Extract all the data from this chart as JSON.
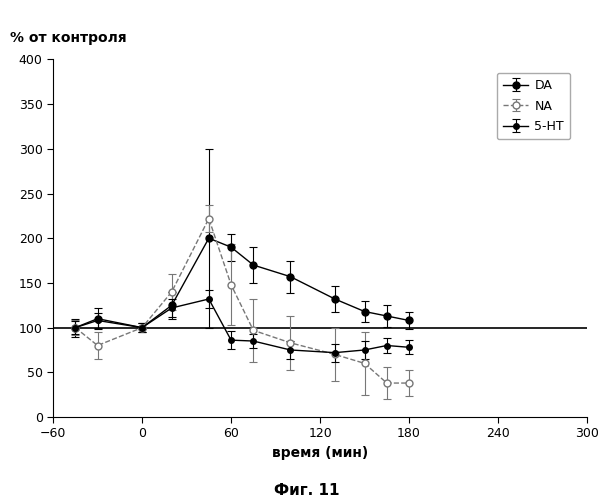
{
  "title": "% от контроля",
  "xlabel": "время (мин)",
  "caption": "Фиг. 11",
  "xlim": [
    -60,
    300
  ],
  "ylim": [
    0,
    400
  ],
  "xticks": [
    -60,
    0,
    60,
    120,
    180,
    240,
    300
  ],
  "yticks": [
    0,
    50,
    100,
    150,
    200,
    250,
    300,
    350,
    400
  ],
  "hline_y": 100,
  "DA": {
    "x": [
      -45,
      -30,
      0,
      20,
      45,
      60,
      75,
      100,
      130,
      150,
      165,
      180
    ],
    "y": [
      100,
      110,
      100,
      125,
      200,
      190,
      170,
      157,
      132,
      118,
      113,
      108
    ],
    "yerr": [
      10,
      12,
      5,
      15,
      100,
      15,
      20,
      18,
      15,
      12,
      12,
      10
    ],
    "color": "#000000",
    "linestyle": "-",
    "marker": "o",
    "markersize": 5,
    "markerfacecolor": "#000000",
    "label": "DA"
  },
  "NA": {
    "x": [
      -45,
      -30,
      0,
      20,
      45,
      60,
      75,
      100,
      130,
      150,
      165,
      180
    ],
    "y": [
      100,
      80,
      100,
      140,
      222,
      148,
      97,
      83,
      70,
      60,
      38,
      38
    ],
    "yerr": [
      8,
      15,
      5,
      20,
      15,
      45,
      35,
      30,
      30,
      35,
      18,
      15
    ],
    "color": "#777777",
    "linestyle": "--",
    "marker": "o",
    "markersize": 5,
    "markerfacecolor": "#ffffff",
    "label": "NA"
  },
  "5HT": {
    "x": [
      -45,
      -30,
      0,
      20,
      45,
      60,
      75,
      100,
      130,
      150,
      165,
      180
    ],
    "y": [
      100,
      108,
      100,
      122,
      132,
      86,
      85,
      75,
      72,
      75,
      80,
      78
    ],
    "yerr": [
      7,
      8,
      5,
      10,
      10,
      10,
      8,
      10,
      10,
      10,
      8,
      8
    ],
    "color": "#000000",
    "linestyle": "-",
    "marker": "o",
    "markersize": 4,
    "markerfacecolor": "#000000",
    "label": "5-HT"
  },
  "background_color": "#ffffff",
  "linewidth": 1.0
}
